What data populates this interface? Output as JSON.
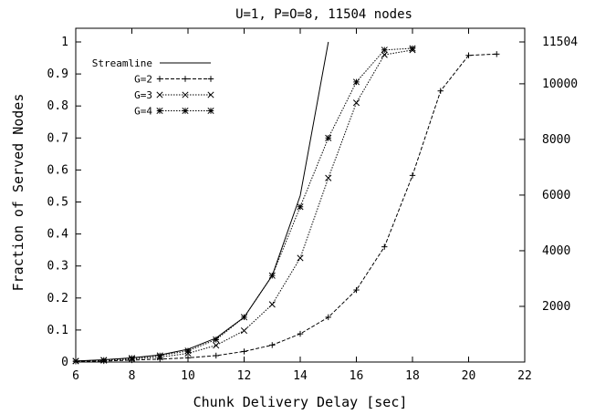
{
  "chart_data": {
    "type": "line",
    "title": "U=1, P=O=8, 11504 nodes",
    "xlabel": "Chunk Delivery Delay [sec]",
    "ylabel": "Fraction of Served Nodes",
    "xlim": [
      6,
      22
    ],
    "ylim": [
      0,
      1.05
    ],
    "x_ticks": [
      "6",
      "8",
      "10",
      "12",
      "14",
      "16",
      "18",
      "20",
      "22"
    ],
    "y_ticks": [
      "0",
      "0.1",
      "0.2",
      "0.3",
      "0.4",
      "0.5",
      "0.6",
      "0.7",
      "0.8",
      "0.9",
      "1"
    ],
    "y2_ticks": [
      "2000",
      "4000",
      "6000",
      "8000",
      "10000",
      "11504"
    ],
    "grid": false,
    "legend_position": "top-left",
    "series": [
      {
        "name": "Streamline",
        "style": "solid",
        "marker": "none",
        "x": [
          6,
          7,
          8,
          9,
          10,
          11,
          12,
          13,
          14,
          15
        ],
        "y": [
          0.003,
          0.007,
          0.013,
          0.022,
          0.04,
          0.075,
          0.14,
          0.27,
          0.52,
          1.0
        ]
      },
      {
        "name": "G=2",
        "style": "dashed",
        "marker": "plus",
        "x": [
          6,
          7,
          8,
          9,
          10,
          11,
          12,
          13,
          14,
          15,
          16,
          17,
          18,
          19,
          20,
          21
        ],
        "y": [
          0.002,
          0.003,
          0.006,
          0.009,
          0.013,
          0.02,
          0.033,
          0.053,
          0.088,
          0.14,
          0.225,
          0.36,
          0.583,
          0.847,
          0.958,
          0.962
        ]
      },
      {
        "name": "G=3",
        "style": "dotted",
        "marker": "x",
        "x": [
          6,
          7,
          8,
          9,
          10,
          11,
          12,
          13,
          14,
          15,
          16,
          17,
          18
        ],
        "y": [
          0.003,
          0.005,
          0.009,
          0.015,
          0.027,
          0.052,
          0.098,
          0.18,
          0.325,
          0.575,
          0.81,
          0.96,
          0.975
        ]
      },
      {
        "name": "G=4",
        "style": "dotted",
        "marker": "star",
        "x": [
          6,
          7,
          8,
          9,
          10,
          11,
          12,
          13,
          14,
          15,
          16,
          17,
          18
        ],
        "y": [
          0.003,
          0.006,
          0.012,
          0.02,
          0.035,
          0.07,
          0.14,
          0.27,
          0.485,
          0.7,
          0.875,
          0.975,
          0.98
        ]
      }
    ]
  }
}
